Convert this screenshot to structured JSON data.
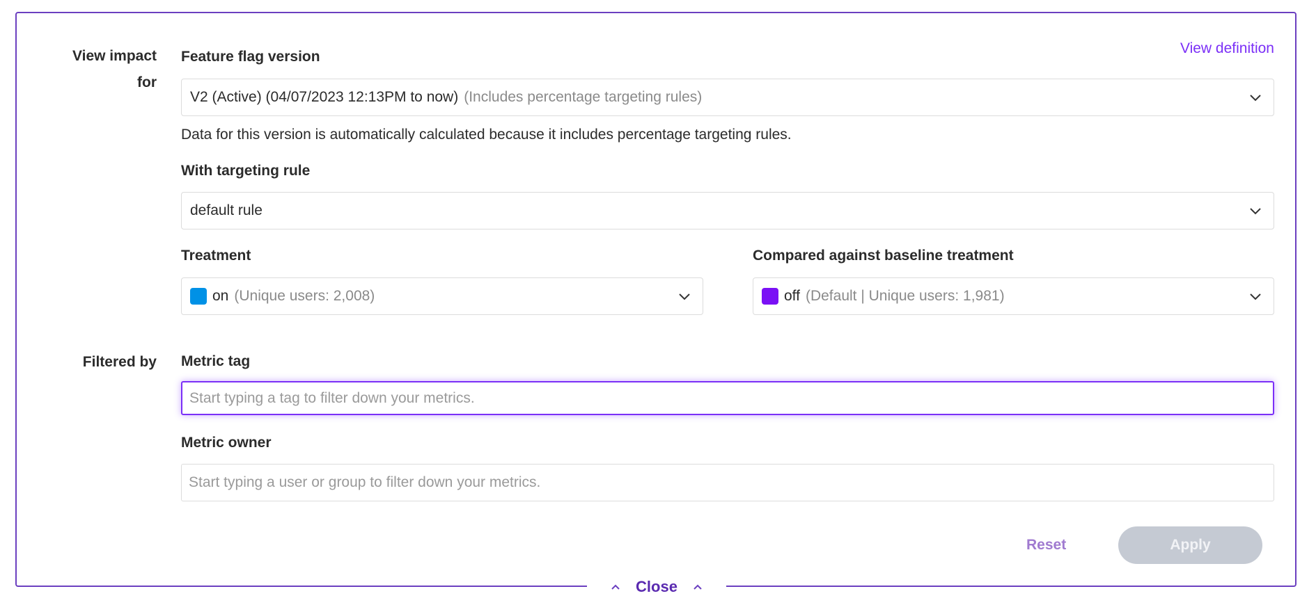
{
  "view_definition": "View definition",
  "view_impact": {
    "label_line1": "View impact",
    "label_line2": "for"
  },
  "feature_flag_version": {
    "label": "Feature flag version",
    "value": "V2 (Active) (04/07/2023 12:13PM to now)",
    "value_note": "(Includes percentage targeting rules)",
    "helper": "Data for this version is automatically calculated because it includes percentage targeting rules."
  },
  "targeting_rule": {
    "label": "With targeting rule",
    "value": "default rule"
  },
  "treatment": {
    "label": "Treatment",
    "value": "on",
    "note": "(Unique users: 2,008)",
    "color": "#0091e6"
  },
  "baseline": {
    "label": "Compared against baseline treatment",
    "value": "off",
    "note": "(Default | Unique users: 1,981)",
    "color": "#7a10f5"
  },
  "filtered_by": {
    "label": "Filtered by"
  },
  "metric_tag": {
    "label": "Metric tag",
    "placeholder": "Start typing a tag to filter down your metrics."
  },
  "metric_owner": {
    "label": "Metric owner",
    "placeholder": "Start typing a user or group to filter down your metrics."
  },
  "actions": {
    "reset": "Reset",
    "apply": "Apply",
    "close": "Close"
  },
  "colors": {
    "accent": "#6b3fc0",
    "link": "#7b2ff7",
    "apply_disabled": "#c5cad3"
  }
}
